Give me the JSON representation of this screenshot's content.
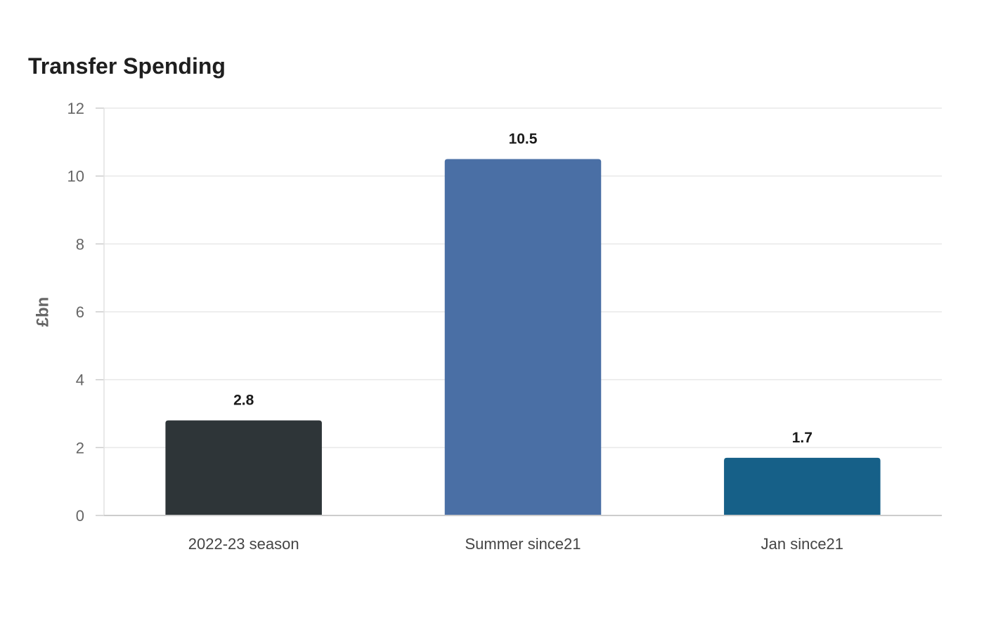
{
  "chart_data": {
    "type": "bar",
    "title": "Transfer Spending",
    "xlabel": "",
    "ylabel": "£bn",
    "categories": [
      "2022-23 season",
      "Summer since21",
      "Jan since21"
    ],
    "values": [
      2.8,
      10.5,
      1.7
    ],
    "value_labels": [
      "2.8",
      "10.5",
      "1.7"
    ],
    "colors": [
      "#2e3538",
      "#4a6fa5",
      "#166088"
    ],
    "ylim": [
      0,
      12
    ],
    "yticks": [
      0,
      2,
      4,
      6,
      8,
      10,
      12
    ],
    "grid": true,
    "legend": "none"
  }
}
